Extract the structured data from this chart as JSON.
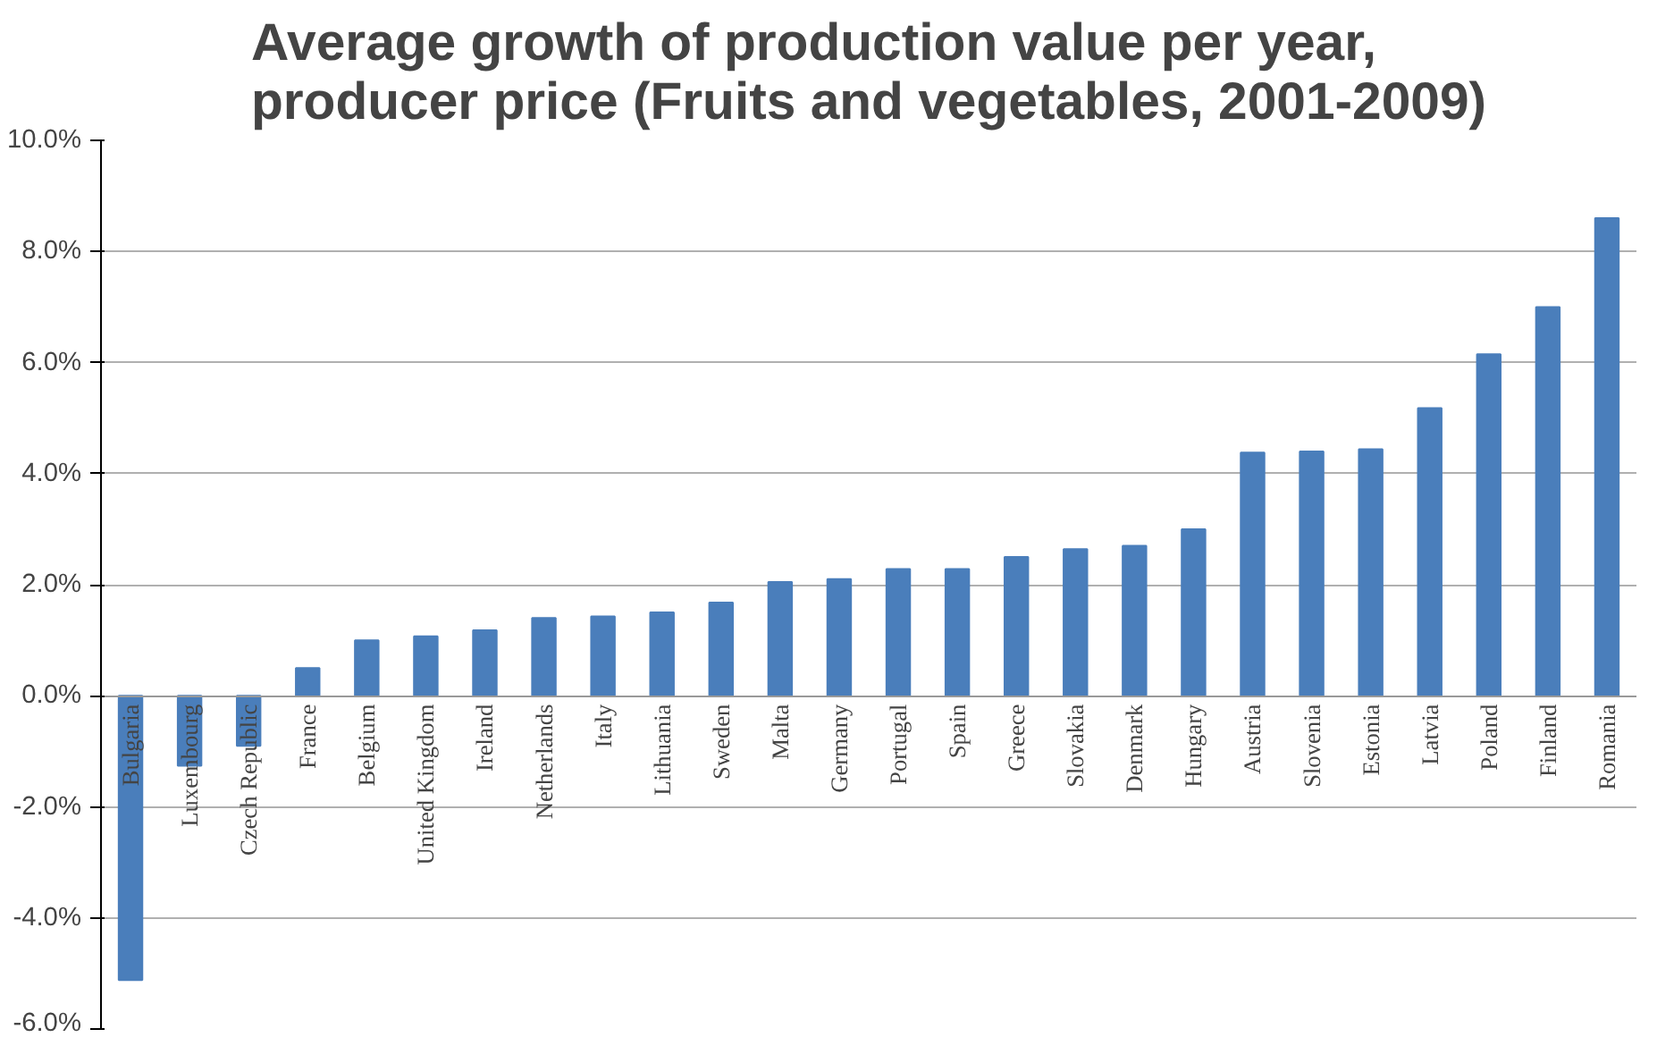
{
  "chart_data": {
    "type": "bar",
    "title": "Average growth of production value per year,\nproducer price (Fruits and vegetables, 2001-2009)",
    "categories": [
      "Bulgaria",
      "Luxembourg",
      "Czech Republic",
      "France",
      "Belgium",
      "United Kingdom",
      "Ireland",
      "Netherlands",
      "Italy",
      "Lithuania",
      "Sweden",
      "Malta",
      "Germany",
      "Portugal",
      "Spain",
      "Greece",
      "Slovakia",
      "Denmark",
      "Hungary",
      "Austria",
      "Slovenia",
      "Estonia",
      "Latvia",
      "Poland",
      "Finland",
      "Romania"
    ],
    "values": [
      -5.12,
      -1.26,
      -0.9,
      0.5,
      1.0,
      1.07,
      1.18,
      1.4,
      1.43,
      1.5,
      1.68,
      2.05,
      2.1,
      2.28,
      2.28,
      2.5,
      2.64,
      2.7,
      3.0,
      4.38,
      4.4,
      4.44,
      5.18,
      6.15,
      7.0,
      8.6
    ],
    "color": "#4a7ebb",
    "ylim": [
      -6,
      10
    ],
    "yticks": [
      {
        "value": -6,
        "label": "-6.0%"
      },
      {
        "value": -4,
        "label": "-4.0%"
      },
      {
        "value": -2,
        "label": "-2.0%"
      },
      {
        "value": 0,
        "label": "0.0%"
      },
      {
        "value": 2,
        "label": "2.0%"
      },
      {
        "value": 4,
        "label": "4.0%"
      },
      {
        "value": 6,
        "label": "6.0%"
      },
      {
        "value": 8,
        "label": "8.0%"
      },
      {
        "value": 10,
        "label": "10.0%"
      }
    ],
    "grid": "y"
  }
}
